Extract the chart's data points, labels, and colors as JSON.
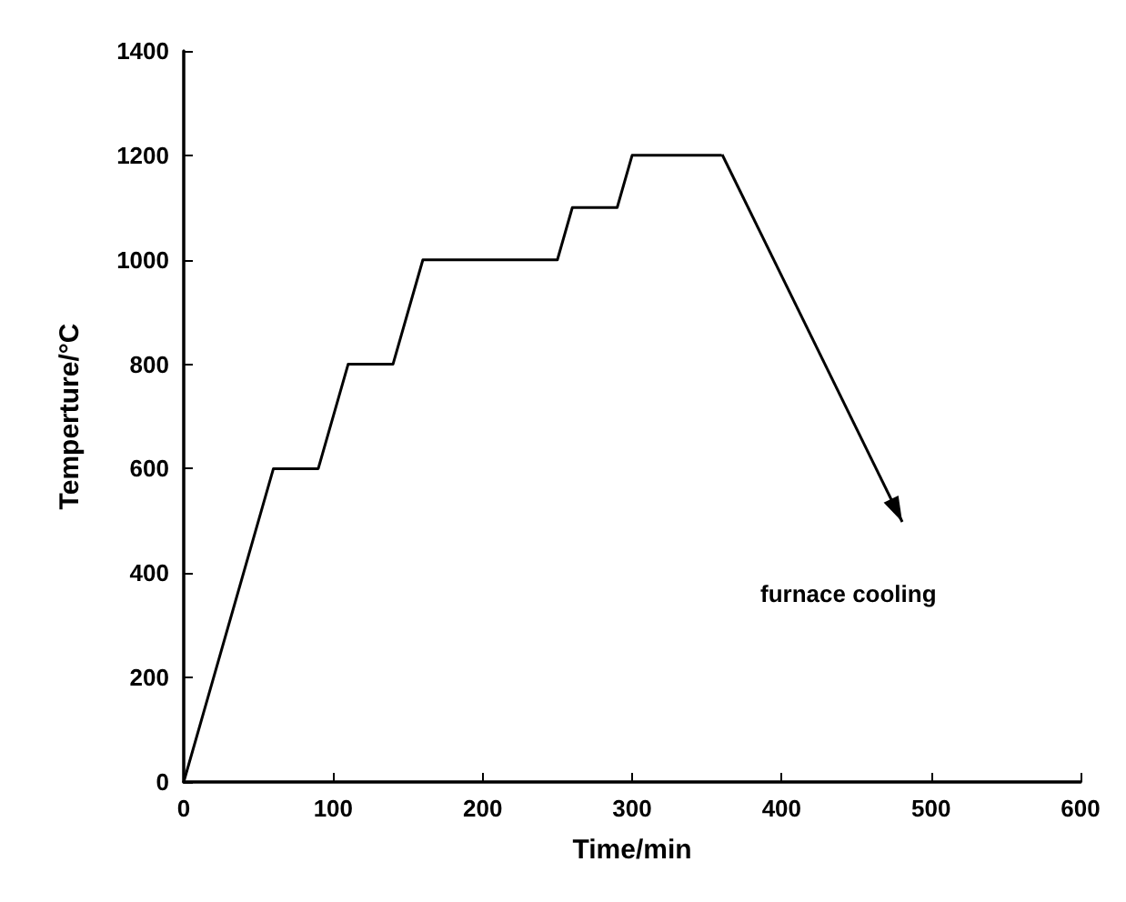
{
  "chart_data": {
    "type": "line",
    "xlabel": "Time/min",
    "ylabel": "Temperture/°C",
    "x": [
      0,
      60,
      90,
      110,
      140,
      160,
      250,
      260,
      290,
      300,
      360
    ],
    "series": [
      {
        "color": "#000000",
        "values": [
          0,
          600,
          600,
          800,
          800,
          1000,
          1000,
          1100,
          1100,
          1200,
          1200
        ]
      }
    ],
    "xlim": [
      0,
      600
    ],
    "xticks": [
      0,
      100,
      200,
      300,
      400,
      500,
      600
    ],
    "ylim": [
      0,
      1400
    ],
    "yticks": [
      0,
      200,
      400,
      600,
      800,
      1000,
      1200,
      1400
    ],
    "grid": false,
    "marker": "none",
    "line_style": "solid",
    "annotations": [
      "furnace cooling"
    ]
  }
}
